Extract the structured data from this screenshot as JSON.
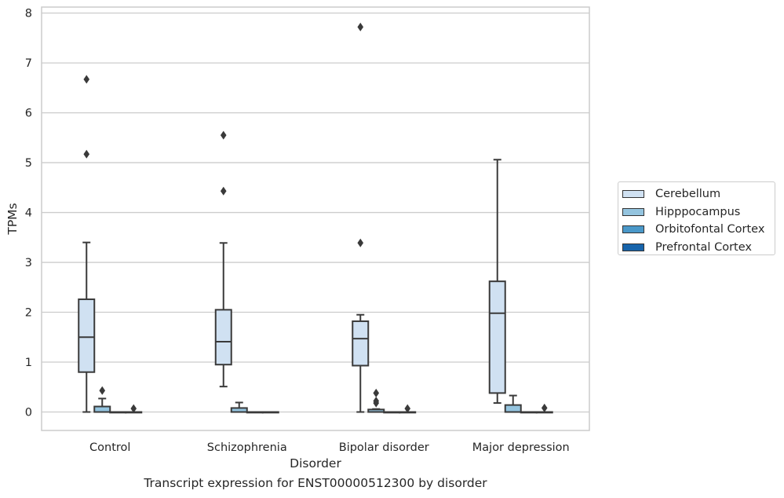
{
  "caption": "Transcript expression for ENST00000512300 by disorder",
  "chart_data": {
    "type": "box",
    "xlabel": "Disorder",
    "ylabel": "TPMs",
    "ylim": [
      -0.37,
      8.12
    ],
    "yticks": [
      0,
      1,
      2,
      3,
      4,
      5,
      6,
      7,
      8
    ],
    "grid": "horizontal",
    "legend_position": "right",
    "categories": [
      "Control",
      "Schizophrenia",
      "Bipolar disorder",
      "Major depression"
    ],
    "series": [
      {
        "name": "Cerebellum",
        "color": "#d0e1f2",
        "boxes": [
          {
            "whisker_low": 0.0,
            "q1": 0.8,
            "median": 1.5,
            "q3": 2.26,
            "whisker_high": 3.4,
            "outliers": [
              5.17,
              6.67
            ]
          },
          {
            "whisker_low": 0.51,
            "q1": 0.95,
            "median": 1.41,
            "q3": 2.05,
            "whisker_high": 3.39,
            "outliers": [
              4.43,
              5.55
            ]
          },
          {
            "whisker_low": 0.0,
            "q1": 0.93,
            "median": 1.47,
            "q3": 1.82,
            "whisker_high": 1.95,
            "outliers": [
              3.39,
              7.72
            ]
          },
          {
            "whisker_low": 0.18,
            "q1": 0.38,
            "median": 1.98,
            "q3": 2.62,
            "whisker_high": 5.06,
            "outliers": []
          }
        ]
      },
      {
        "name": "Hipppocampus",
        "color": "#94c4df",
        "boxes": [
          {
            "whisker_low": 0.0,
            "q1": 0.0,
            "median": 0.0,
            "q3": 0.11,
            "whisker_high": 0.27,
            "outliers": [
              0.43
            ]
          },
          {
            "whisker_low": 0.0,
            "q1": 0.0,
            "median": 0.0,
            "q3": 0.08,
            "whisker_high": 0.19,
            "outliers": []
          },
          {
            "whisker_low": 0.0,
            "q1": 0.0,
            "median": 0.0,
            "q3": 0.05,
            "whisker_high": 0.06,
            "outliers": [
              0.18,
              0.22,
              0.38
            ]
          },
          {
            "whisker_low": 0.0,
            "q1": 0.0,
            "median": 0.0,
            "q3": 0.14,
            "whisker_high": 0.33,
            "outliers": []
          }
        ]
      },
      {
        "name": "Orbitofontal Cortex",
        "color": "#4a98c9",
        "boxes": [
          {
            "whisker_low": 0.0,
            "q1": 0.0,
            "median": 0.0,
            "q3": 0.0,
            "whisker_high": 0.0,
            "outliers": []
          },
          {
            "whisker_low": 0.0,
            "q1": 0.0,
            "median": 0.0,
            "q3": 0.0,
            "whisker_high": 0.0,
            "outliers": []
          },
          {
            "whisker_low": 0.0,
            "q1": 0.0,
            "median": 0.0,
            "q3": 0.0,
            "whisker_high": 0.0,
            "outliers": []
          },
          {
            "whisker_low": 0.0,
            "q1": 0.0,
            "median": 0.0,
            "q3": 0.0,
            "whisker_high": 0.0,
            "outliers": []
          }
        ]
      },
      {
        "name": "Prefrontal Cortex",
        "color": "#1764ab",
        "boxes": [
          {
            "whisker_low": 0.0,
            "q1": 0.0,
            "median": 0.0,
            "q3": 0.0,
            "whisker_high": 0.0,
            "outliers": [
              0.07
            ]
          },
          {
            "whisker_low": 0.0,
            "q1": 0.0,
            "median": 0.0,
            "q3": 0.0,
            "whisker_high": 0.0,
            "outliers": []
          },
          {
            "whisker_low": 0.0,
            "q1": 0.0,
            "median": 0.0,
            "q3": 0.0,
            "whisker_high": 0.0,
            "outliers": [
              0.07
            ]
          },
          {
            "whisker_low": 0.0,
            "q1": 0.0,
            "median": 0.0,
            "q3": 0.0,
            "whisker_high": 0.0,
            "outliers": [
              0.08
            ]
          }
        ]
      }
    ]
  }
}
